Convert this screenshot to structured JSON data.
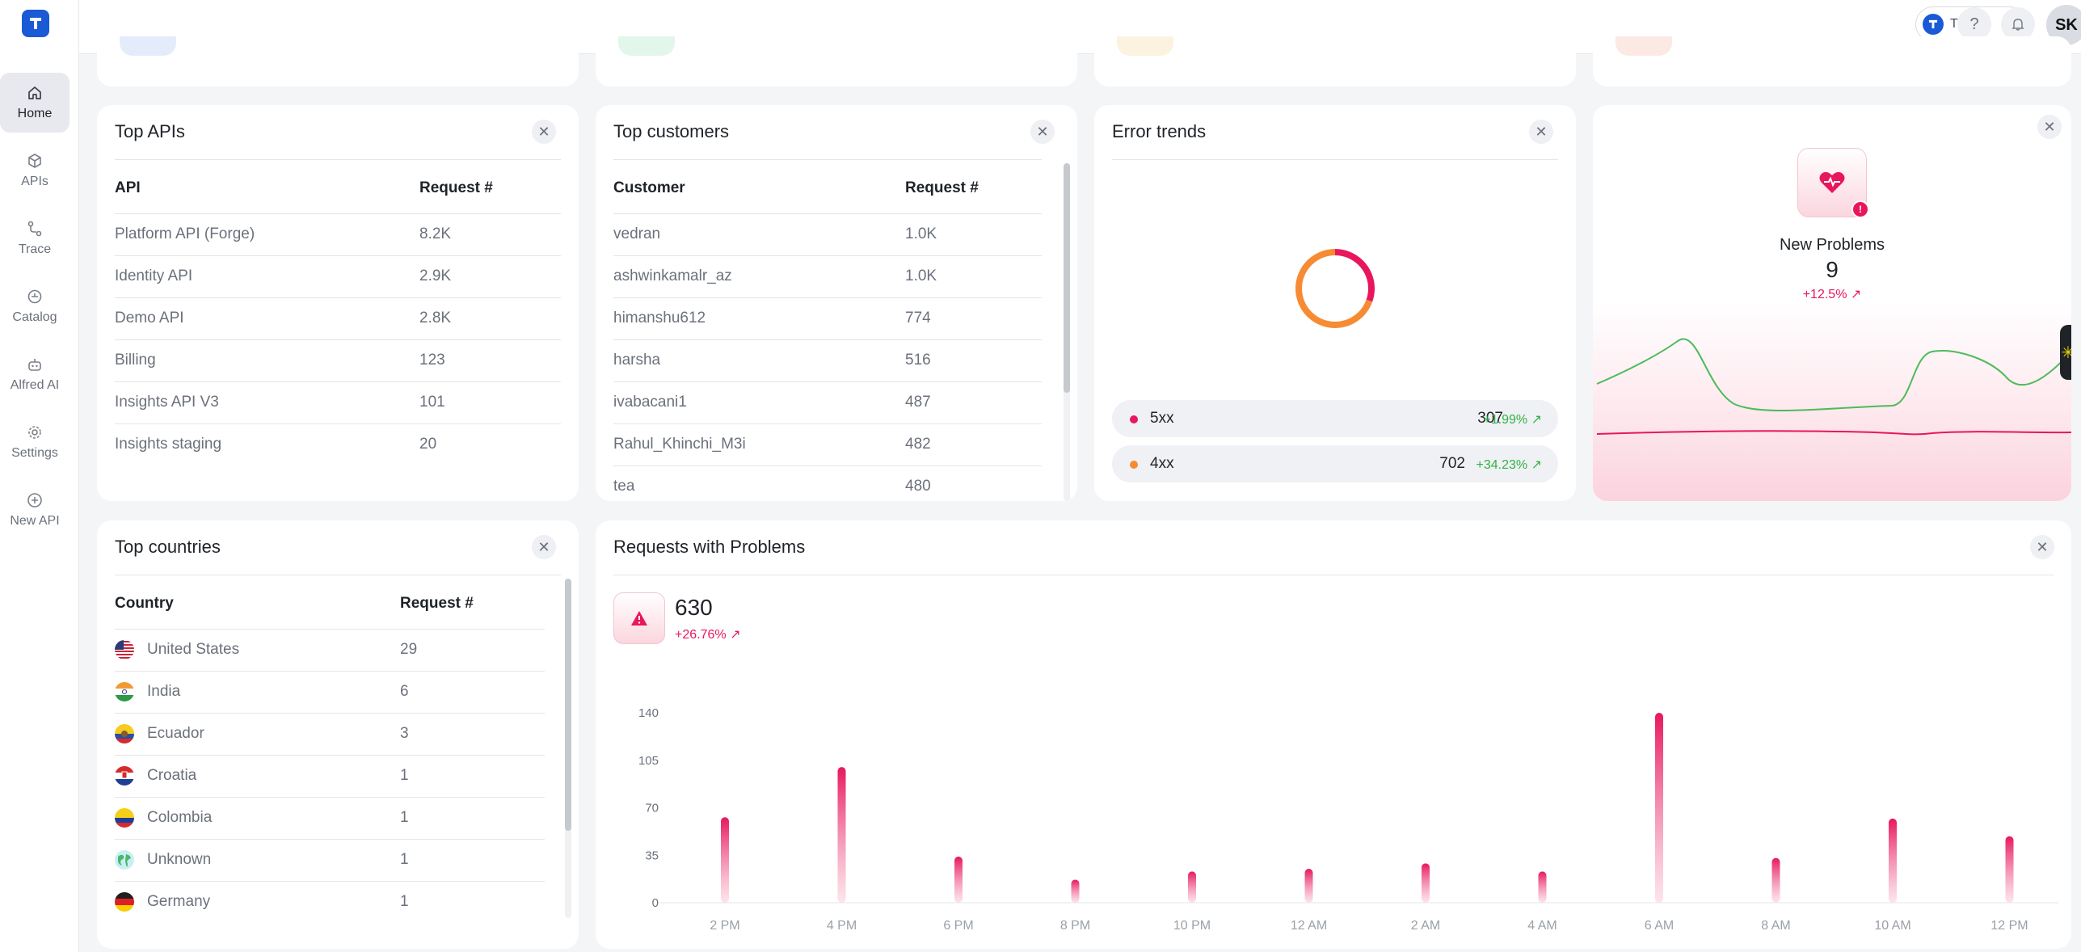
{
  "sidebar": {
    "items": [
      {
        "label": "Home",
        "icon": "home-icon"
      },
      {
        "label": "APIs",
        "icon": "cube-icon"
      },
      {
        "label": "Trace",
        "icon": "trace-icon"
      },
      {
        "label": "Catalog",
        "icon": "catalog-icon"
      },
      {
        "label": "Alfred AI",
        "icon": "robot-icon"
      },
      {
        "label": "Settings",
        "icon": "gear-icon"
      },
      {
        "label": "New API",
        "icon": "plus-circle-icon"
      }
    ]
  },
  "header": {
    "org_name": "Treble",
    "help_icon": "question-icon",
    "notifications_icon": "bell-icon",
    "avatar_initials": "SK"
  },
  "top_apis": {
    "title": "Top APIs",
    "columns": [
      "API",
      "Request #"
    ],
    "rows": [
      [
        "Platform API (Forge)",
        "8.2K"
      ],
      [
        "Identity API",
        "2.9K"
      ],
      [
        "Demo API",
        "2.8K"
      ],
      [
        "Billing",
        "123"
      ],
      [
        "Insights API V3",
        "101"
      ],
      [
        "Insights staging",
        "20"
      ]
    ]
  },
  "top_customers": {
    "title": "Top customers",
    "columns": [
      "Customer",
      "Request #"
    ],
    "rows": [
      [
        "vedran",
        "1.0K"
      ],
      [
        "ashwinkamalr_az",
        "1.0K"
      ],
      [
        "himanshu612",
        "774"
      ],
      [
        "harsha",
        "516"
      ],
      [
        "ivabacani1",
        "487"
      ],
      [
        "Rahul_Khinchi_M3i",
        "482"
      ],
      [
        "tea",
        "480"
      ]
    ]
  },
  "error_trends": {
    "title": "Error trends",
    "items": [
      {
        "label": "5xx",
        "value": "307",
        "delta": "+1.99%",
        "value_num": 307,
        "color": "#e8175d"
      },
      {
        "label": "4xx",
        "value": "702",
        "delta": "+34.23%",
        "value_num": 702,
        "color": "#f68b33"
      }
    ]
  },
  "new_problems": {
    "title": "New Problems",
    "value": "9",
    "delta": "+12.5%",
    "accent": "#e8175d"
  },
  "top_countries": {
    "title": "Top countries",
    "columns": [
      "Country",
      "Request #"
    ],
    "rows": [
      {
        "name": "United States",
        "count": "29",
        "flag": "us-flag-icon"
      },
      {
        "name": "India",
        "count": "6",
        "flag": "india-flag-icon"
      },
      {
        "name": "Ecuador",
        "count": "3",
        "flag": "ecuador-flag-icon"
      },
      {
        "name": "Croatia",
        "count": "1",
        "flag": "croatia-flag-icon"
      },
      {
        "name": "Colombia",
        "count": "1",
        "flag": "colombia-flag-icon"
      },
      {
        "name": "Unknown",
        "count": "1",
        "flag": "globe-icon"
      },
      {
        "name": "Germany",
        "count": "1",
        "flag": "germany-flag-icon"
      }
    ]
  },
  "requests_with_problems": {
    "title": "Requests with Problems",
    "value": "630",
    "delta": "+26.76%"
  },
  "chart_data": {
    "type": "bar",
    "categories": [
      "2 PM",
      "4 PM",
      "6 PM",
      "8 PM",
      "10 PM",
      "12 AM",
      "2 AM",
      "4 AM",
      "6 AM",
      "8 AM",
      "10 AM",
      "12 PM"
    ],
    "values": [
      63,
      100,
      34,
      17,
      23,
      25,
      29,
      23,
      140,
      33,
      62,
      49
    ],
    "y_ticks": [
      "0",
      "35",
      "70",
      "105",
      "140"
    ],
    "ylim": [
      0,
      140
    ],
    "color": "#e8175d",
    "grid": false
  }
}
